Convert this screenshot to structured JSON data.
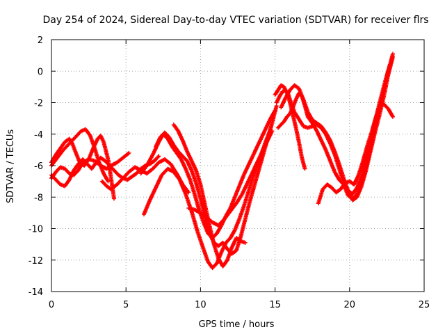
{
  "chart_data": {
    "type": "scatter",
    "title": "Day 254 of 2024, Sidereal Day-to-day VTEC variation (SDTVAR) for receiver flrs",
    "xlabel": "GPS time / hours",
    "ylabel": "SDTVAR / TECUs",
    "xlim": [
      0,
      25
    ],
    "ylim": [
      -14,
      2
    ],
    "xticks": [
      0,
      5,
      10,
      15,
      20,
      25
    ],
    "yticks": [
      -14,
      -12,
      -10,
      -8,
      -6,
      -4,
      -2,
      0,
      2
    ],
    "grid": true,
    "marker": "plus",
    "color": "#ff0000",
    "series": [
      {
        "x": [
          0.0,
          0.3,
          0.6,
          0.9,
          1.2,
          1.5,
          1.8,
          2.1,
          2.4,
          2.7,
          3.0,
          3.3,
          3.6,
          3.9,
          4.2,
          4.5,
          4.8,
          5.1,
          5.4,
          5.7,
          6.0,
          6.3,
          6.6,
          6.9,
          7.2
        ],
        "y": [
          -6.6,
          -6.9,
          -7.2,
          -7.3,
          -6.9,
          -6.3,
          -5.9,
          -5.6,
          -5.9,
          -6.2,
          -5.8,
          -5.5,
          -5.7,
          -6.0,
          -6.3,
          -6.6,
          -6.8,
          -6.9,
          -6.7,
          -6.5,
          -6.2,
          -6.0,
          -5.9,
          -5.7,
          -5.4
        ]
      },
      {
        "x": [
          0.0,
          0.4,
          0.8,
          1.2,
          1.6,
          2.0,
          2.3,
          2.6,
          2.9,
          3.2,
          3.5,
          3.8
        ],
        "y": [
          -6.0,
          -5.5,
          -5.0,
          -4.6,
          -4.2,
          -3.8,
          -3.7,
          -4.1,
          -4.9,
          -5.8,
          -6.5,
          -7.0
        ]
      },
      {
        "x": [
          0.0,
          0.3,
          0.6,
          0.9,
          1.2,
          1.4,
          1.6,
          1.9,
          2.2,
          2.5,
          2.8,
          3.1,
          3.3,
          3.5,
          3.8,
          4.0,
          4.2
        ],
        "y": [
          -5.8,
          -5.3,
          -4.9,
          -4.5,
          -4.3,
          -4.6,
          -5.1,
          -5.8,
          -6.0,
          -5.6,
          -4.9,
          -4.3,
          -4.1,
          -4.5,
          -5.6,
          -6.8,
          -8.1
        ]
      },
      {
        "x": [
          0.0,
          0.3,
          0.6,
          0.9,
          1.2,
          1.5,
          1.8,
          2.1,
          2.5,
          2.9,
          3.3,
          3.7,
          4.0,
          4.4,
          4.8,
          5.2
        ],
        "y": [
          -6.8,
          -6.4,
          -6.1,
          -6.2,
          -6.5,
          -6.6,
          -6.3,
          -5.8,
          -5.6,
          -5.7,
          -6.0,
          -6.2,
          -6.0,
          -5.8,
          -5.5,
          -5.2
        ]
      },
      {
        "x": [
          3.4,
          3.7,
          4.0,
          4.4,
          4.8,
          5.2,
          5.6,
          6.0,
          6.4,
          6.8,
          7.2,
          7.6,
          8.0,
          8.4,
          8.8,
          9.2
        ],
        "y": [
          -7.0,
          -7.3,
          -7.5,
          -7.2,
          -6.8,
          -6.4,
          -6.1,
          -6.3,
          -6.5,
          -6.2,
          -5.8,
          -5.6,
          -5.9,
          -6.5,
          -7.2,
          -7.7
        ]
      },
      {
        "x": [
          6.0,
          6.4,
          6.8,
          7.2,
          7.5,
          7.8,
          8.1,
          8.4,
          8.7,
          9.0,
          9.3,
          9.6,
          9.9,
          10.2,
          10.5,
          10.8,
          11.1,
          11.4,
          11.7,
          12.0,
          12.3,
          12.6,
          12.9,
          13.2,
          13.5,
          13.8,
          14.1,
          14.4,
          14.7,
          15.0
        ],
        "y": [
          -6.5,
          -6.0,
          -5.3,
          -4.5,
          -4.0,
          -4.3,
          -4.8,
          -5.2,
          -5.6,
          -6.2,
          -6.9,
          -7.8,
          -8.8,
          -9.6,
          -10.3,
          -10.6,
          -10.3,
          -9.8,
          -9.2,
          -8.7,
          -8.0,
          -7.3,
          -6.6,
          -6.0,
          -5.4,
          -4.8,
          -4.2,
          -3.6,
          -3.0,
          -2.5
        ]
      },
      {
        "x": [
          6.2,
          6.6,
          7.0,
          7.4,
          7.8,
          8.2,
          8.6,
          9.0,
          9.4,
          9.8,
          10.2,
          10.5,
          10.8,
          11.1,
          11.4,
          11.7,
          12.0,
          12.3,
          12.6,
          12.9,
          13.2,
          13.5,
          13.8,
          14.1,
          14.4,
          14.7
        ],
        "y": [
          -9.1,
          -8.2,
          -7.4,
          -6.6,
          -6.2,
          -6.4,
          -6.9,
          -7.8,
          -8.9,
          -10.2,
          -11.3,
          -12.1,
          -12.5,
          -12.2,
          -11.5,
          -10.9,
          -10.6,
          -10.1,
          -9.4,
          -8.6,
          -7.7,
          -6.8,
          -6.0,
          -5.2,
          -4.4,
          -3.7
        ]
      },
      {
        "x": [
          7.0,
          7.3,
          7.6,
          7.9,
          8.2,
          8.5,
          8.8,
          9.1,
          9.4,
          9.7,
          10.0,
          10.3,
          10.6,
          10.9,
          11.2,
          11.5,
          11.8,
          12.1,
          12.4,
          12.7,
          13.0,
          13.3,
          13.6,
          13.9,
          14.2,
          14.5,
          14.8,
          15.1
        ],
        "y": [
          -4.8,
          -4.2,
          -3.9,
          -4.2,
          -4.7,
          -5.1,
          -5.4,
          -5.7,
          -6.3,
          -7.1,
          -8.1,
          -9.3,
          -10.3,
          -10.9,
          -11.1,
          -10.9,
          -11.3,
          -11.6,
          -11.4,
          -10.5,
          -9.4,
          -8.3,
          -7.3,
          -6.3,
          -5.3,
          -4.3,
          -3.3,
          -2.2
        ]
      },
      {
        "x": [
          8.2,
          8.5,
          8.8,
          9.1,
          9.4,
          9.7,
          10.0,
          10.3,
          10.6,
          10.9,
          11.2,
          11.5,
          11.8,
          12.1,
          12.4,
          12.7,
          13.0
        ],
        "y": [
          -3.4,
          -3.8,
          -4.4,
          -5.1,
          -5.7,
          -6.3,
          -7.2,
          -8.5,
          -9.8,
          -11.0,
          -11.9,
          -12.4,
          -12.0,
          -11.2,
          -10.6,
          -10.8,
          -10.9
        ]
      },
      {
        "x": [
          9.2,
          9.6,
          10.0,
          10.4,
          10.8,
          11.2,
          11.6,
          12.0,
          12.4,
          12.8,
          13.2,
          13.6,
          14.0,
          14.4,
          14.8
        ],
        "y": [
          -8.7,
          -8.8,
          -9.0,
          -9.3,
          -9.6,
          -9.8,
          -9.4,
          -8.9,
          -8.4,
          -7.8,
          -7.0,
          -6.2,
          -5.4,
          -4.6,
          -3.8
        ]
      },
      {
        "x": [
          15.0,
          15.2,
          15.4,
          15.6,
          15.8,
          16.0,
          16.2,
          16.4,
          16.6,
          16.8,
          17.0
        ],
        "y": [
          -1.5,
          -1.2,
          -0.9,
          -1.0,
          -1.4,
          -2.0,
          -2.8,
          -3.6,
          -4.5,
          -5.5,
          -6.2
        ]
      },
      {
        "x": [
          15.1,
          15.3,
          15.5,
          15.7,
          15.9,
          16.1,
          16.3,
          16.5,
          16.7,
          16.9,
          17.2,
          17.5,
          17.8,
          18.1,
          18.4,
          18.7,
          19.0,
          19.3,
          19.6,
          19.9,
          20.2,
          20.5,
          20.8,
          21.1,
          21.4,
          21.7,
          22.0,
          22.3,
          22.6,
          22.9
        ],
        "y": [
          -2.0,
          -1.6,
          -1.3,
          -1.2,
          -1.5,
          -2.1,
          -2.6,
          -2.9,
          -3.2,
          -3.5,
          -3.6,
          -3.5,
          -3.4,
          -3.6,
          -4.0,
          -4.6,
          -5.3,
          -6.2,
          -7.1,
          -7.6,
          -7.8,
          -7.4,
          -6.7,
          -5.6,
          -4.4,
          -3.2,
          -2.3,
          -2.1,
          -2.4,
          -2.9
        ]
      },
      {
        "x": [
          15.4,
          15.7,
          16.0,
          16.3,
          16.6,
          16.9,
          17.2,
          17.5,
          17.8,
          18.1,
          18.4,
          18.7,
          19.0,
          19.3,
          19.6,
          19.9,
          20.2,
          20.5,
          20.8,
          21.1,
          21.4,
          21.7,
          22.0,
          22.3,
          22.6,
          22.9
        ],
        "y": [
          -2.3,
          -1.7,
          -1.2,
          -0.9,
          -1.1,
          -1.8,
          -2.6,
          -3.1,
          -3.3,
          -3.5,
          -3.9,
          -4.4,
          -5.1,
          -5.9,
          -6.8,
          -7.6,
          -8.2,
          -8.0,
          -7.3,
          -6.3,
          -5.1,
          -3.9,
          -2.8,
          -1.6,
          -0.2,
          0.9
        ]
      },
      {
        "x": [
          15.2,
          15.4,
          15.6,
          15.8,
          16.0,
          16.2,
          16.4,
          16.6,
          16.8,
          17.0,
          17.2,
          17.5,
          17.8,
          18.1,
          18.4,
          18.7,
          19.0,
          19.3,
          19.6,
          19.9,
          20.2,
          20.5,
          20.8,
          21.1,
          21.4,
          21.7,
          22.0,
          22.3,
          22.6,
          22.9
        ],
        "y": [
          -3.6,
          -3.4,
          -3.2,
          -2.9,
          -2.7,
          -2.3,
          -1.8,
          -1.4,
          -1.6,
          -2.2,
          -2.9,
          -3.3,
          -3.8,
          -4.4,
          -5.0,
          -5.7,
          -6.4,
          -6.9,
          -7.2,
          -7.9,
          -8.1,
          -7.8,
          -7.1,
          -6.1,
          -4.9,
          -3.6,
          -2.4,
          -1.2,
          0.0,
          1.1
        ]
      },
      {
        "x": [
          17.9,
          18.2,
          18.5,
          18.8,
          19.1,
          19.4,
          19.7,
          20.0,
          20.3,
          20.6,
          20.9,
          21.2,
          21.5,
          21.8,
          22.1,
          22.4,
          22.7
        ],
        "y": [
          -8.4,
          -7.5,
          -7.2,
          -7.4,
          -7.7,
          -7.5,
          -7.1,
          -7.0,
          -7.2,
          -6.6,
          -5.7,
          -4.7,
          -3.8,
          -2.8,
          -1.7,
          -0.6,
          0.4
        ]
      }
    ]
  }
}
